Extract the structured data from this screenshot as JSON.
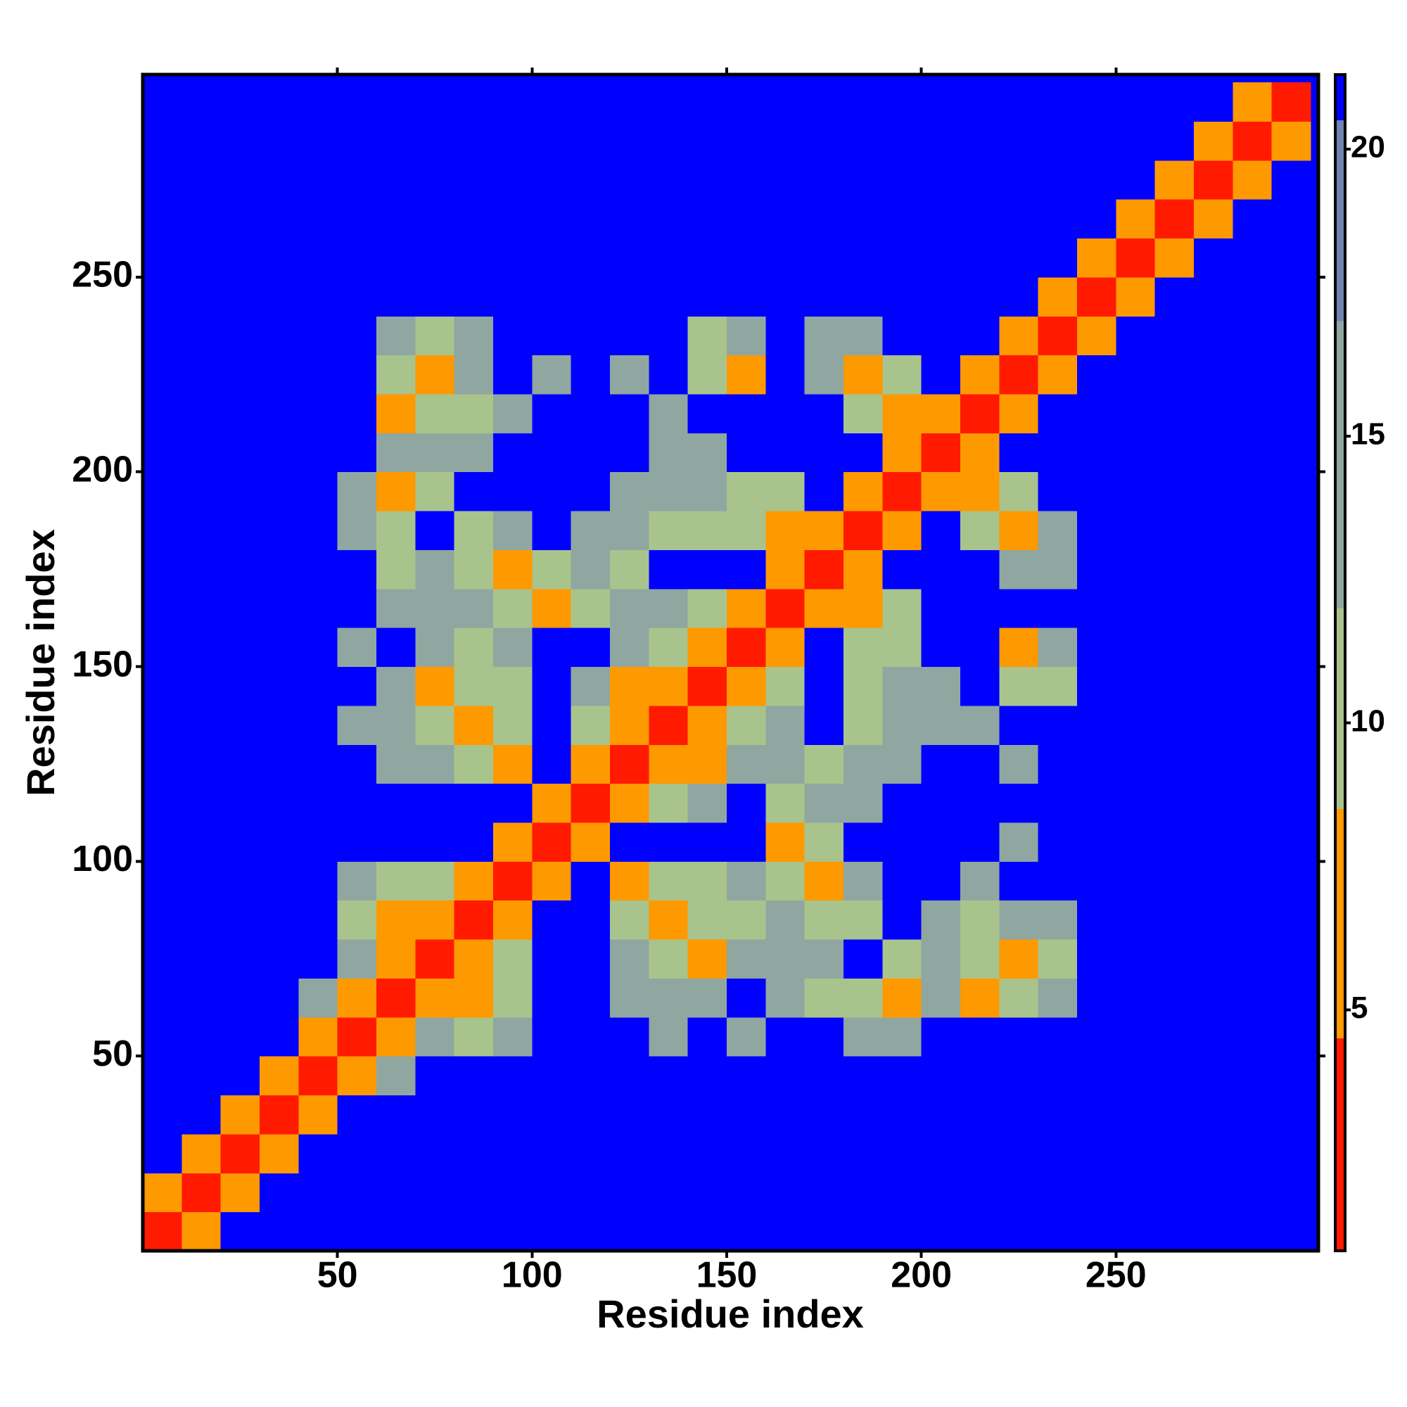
{
  "chart_data": {
    "type": "heatmap",
    "x_label": "Residue index",
    "y_label": "Residue index",
    "xlim": [
      0,
      302
    ],
    "ylim": [
      0,
      302
    ],
    "xticks": [
      50,
      100,
      150,
      200,
      250
    ],
    "yticks": [
      50,
      100,
      150,
      200,
      250
    ],
    "xbins": [
      0,
      10,
      20,
      30,
      40,
      50,
      60,
      70,
      80,
      90,
      100,
      110,
      120,
      130,
      140,
      150,
      160,
      170,
      180,
      190,
      200,
      210,
      220,
      230,
      240,
      250,
      260,
      270,
      280,
      290,
      300
    ],
    "ybins": [
      0,
      10,
      20,
      30,
      40,
      50,
      60,
      70,
      80,
      90,
      100,
      110,
      120,
      130,
      140,
      150,
      160,
      170,
      180,
      190,
      200,
      210,
      220,
      230,
      240,
      250,
      260,
      270,
      280,
      290,
      300
    ],
    "zlim": [
      0.8,
      21.3
    ],
    "zticks": [
      5,
      10,
      15,
      20
    ],
    "color_levels": [
      0.8,
      4.5,
      8.5,
      12,
      17,
      20.5,
      21.3
    ],
    "colors": [
      "#ff1a00",
      "#ff9900",
      "#a9c38c",
      "#8fa7a0",
      "#6f84b0",
      "#0000ff"
    ],
    "z": [
      [
        3,
        8,
        21,
        21,
        21,
        21,
        21,
        21,
        21,
        21,
        21,
        21,
        21,
        21,
        21,
        21,
        21,
        21,
        21,
        21,
        21,
        21,
        21,
        21,
        21,
        21,
        21,
        21,
        21,
        21
      ],
      [
        8,
        3,
        8,
        21,
        21,
        21,
        21,
        21,
        21,
        21,
        21,
        21,
        21,
        21,
        21,
        21,
        21,
        21,
        21,
        21,
        21,
        21,
        21,
        21,
        21,
        21,
        21,
        21,
        21,
        21
      ],
      [
        21,
        8,
        3,
        8,
        21,
        21,
        21,
        21,
        21,
        21,
        21,
        21,
        21,
        21,
        21,
        21,
        21,
        21,
        21,
        21,
        21,
        21,
        21,
        21,
        21,
        21,
        21,
        21,
        21,
        21
      ],
      [
        21,
        21,
        8,
        3,
        8,
        21,
        21,
        21,
        21,
        21,
        21,
        21,
        21,
        21,
        21,
        21,
        21,
        21,
        21,
        21,
        21,
        21,
        21,
        21,
        21,
        21,
        21,
        21,
        21,
        21
      ],
      [
        21,
        21,
        21,
        8,
        3,
        8,
        14,
        21,
        21,
        21,
        21,
        21,
        21,
        21,
        21,
        21,
        21,
        21,
        21,
        21,
        21,
        21,
        21,
        21,
        21,
        21,
        21,
        21,
        21,
        21
      ],
      [
        21,
        21,
        21,
        21,
        8,
        3,
        8,
        14,
        11,
        14,
        21,
        21,
        21,
        14,
        21,
        14,
        21,
        21,
        14,
        14,
        21,
        21,
        21,
        21,
        21,
        21,
        21,
        21,
        21,
        21
      ],
      [
        21,
        21,
        21,
        21,
        14,
        8,
        3,
        8,
        6,
        11,
        21,
        21,
        14,
        14,
        14,
        21,
        14,
        11,
        11,
        6,
        14,
        6,
        11,
        14,
        21,
        21,
        21,
        21,
        21,
        21
      ],
      [
        21,
        21,
        21,
        21,
        21,
        14,
        8,
        3,
        8,
        11,
        21,
        21,
        14,
        11,
        6,
        14,
        14,
        14,
        21,
        11,
        14,
        11,
        6,
        11,
        21,
        21,
        21,
        21,
        21,
        21
      ],
      [
        21,
        21,
        21,
        21,
        21,
        11,
        6,
        8,
        3,
        8,
        21,
        21,
        11,
        6,
        11,
        11,
        14,
        11,
        11,
        21,
        14,
        11,
        14,
        14,
        21,
        21,
        21,
        21,
        21,
        21
      ],
      [
        21,
        21,
        21,
        21,
        21,
        14,
        11,
        11,
        8,
        3,
        8,
        21,
        6,
        11,
        11,
        14,
        11,
        6,
        14,
        21,
        21,
        14,
        21,
        21,
        21,
        21,
        21,
        21,
        21,
        21
      ],
      [
        21,
        21,
        21,
        21,
        21,
        21,
        21,
        21,
        21,
        8,
        3,
        8,
        21,
        21,
        21,
        21,
        6,
        11,
        21,
        21,
        21,
        21,
        14,
        21,
        21,
        21,
        21,
        21,
        21,
        21
      ],
      [
        21,
        21,
        21,
        21,
        21,
        21,
        21,
        21,
        21,
        21,
        8,
        3,
        8,
        11,
        14,
        21,
        11,
        14,
        14,
        21,
        21,
        21,
        21,
        21,
        21,
        21,
        21,
        21,
        21,
        21
      ],
      [
        21,
        21,
        21,
        21,
        21,
        21,
        14,
        14,
        11,
        6,
        21,
        8,
        3,
        8,
        6,
        14,
        14,
        11,
        14,
        14,
        21,
        21,
        14,
        21,
        21,
        21,
        21,
        21,
        21,
        21
      ],
      [
        21,
        21,
        21,
        21,
        21,
        14,
        14,
        11,
        6,
        11,
        21,
        11,
        8,
        3,
        8,
        11,
        14,
        21,
        11,
        14,
        14,
        14,
        21,
        21,
        21,
        21,
        21,
        21,
        21,
        21
      ],
      [
        21,
        21,
        21,
        21,
        21,
        21,
        14,
        6,
        11,
        11,
        21,
        14,
        6,
        8,
        3,
        8,
        11,
        21,
        11,
        14,
        14,
        21,
        11,
        11,
        21,
        21,
        21,
        21,
        21,
        21
      ],
      [
        21,
        21,
        21,
        21,
        21,
        14,
        21,
        14,
        11,
        14,
        21,
        21,
        14,
        11,
        8,
        3,
        8,
        21,
        11,
        11,
        21,
        21,
        6,
        14,
        21,
        21,
        21,
        21,
        21,
        21
      ],
      [
        21,
        21,
        21,
        21,
        21,
        21,
        14,
        14,
        14,
        11,
        6,
        11,
        14,
        14,
        11,
        8,
        3,
        8,
        6,
        11,
        21,
        21,
        21,
        21,
        21,
        21,
        21,
        21,
        21,
        21
      ],
      [
        21,
        21,
        21,
        21,
        21,
        21,
        11,
        14,
        11,
        6,
        11,
        14,
        11,
        21,
        21,
        21,
        8,
        3,
        8,
        21,
        21,
        21,
        14,
        14,
        21,
        21,
        21,
        21,
        21,
        21
      ],
      [
        21,
        21,
        21,
        21,
        21,
        14,
        11,
        21,
        11,
        14,
        21,
        14,
        14,
        11,
        11,
        11,
        6,
        8,
        3,
        8,
        21,
        11,
        6,
        14,
        21,
        21,
        21,
        21,
        21,
        21
      ],
      [
        21,
        21,
        21,
        21,
        21,
        14,
        6,
        11,
        21,
        21,
        21,
        21,
        14,
        14,
        14,
        11,
        11,
        21,
        8,
        3,
        8,
        6,
        11,
        21,
        21,
        21,
        21,
        21,
        21,
        21
      ],
      [
        21,
        21,
        21,
        21,
        21,
        21,
        14,
        14,
        14,
        21,
        21,
        21,
        21,
        14,
        14,
        21,
        21,
        21,
        21,
        8,
        3,
        8,
        21,
        21,
        21,
        21,
        21,
        21,
        21,
        21
      ],
      [
        21,
        21,
        21,
        21,
        21,
        21,
        6,
        11,
        11,
        14,
        21,
        21,
        21,
        14,
        21,
        21,
        21,
        21,
        11,
        6,
        8,
        3,
        8,
        21,
        21,
        21,
        21,
        21,
        21,
        21
      ],
      [
        21,
        21,
        21,
        21,
        21,
        21,
        11,
        6,
        14,
        21,
        14,
        21,
        14,
        21,
        11,
        6,
        21,
        14,
        6,
        11,
        21,
        8,
        3,
        8,
        21,
        21,
        21,
        21,
        21,
        21
      ],
      [
        21,
        21,
        21,
        21,
        21,
        21,
        14,
        11,
        14,
        21,
        21,
        21,
        21,
        21,
        11,
        14,
        21,
        14,
        14,
        21,
        21,
        21,
        8,
        3,
        8,
        21,
        21,
        21,
        21,
        21
      ],
      [
        21,
        21,
        21,
        21,
        21,
        21,
        21,
        21,
        21,
        21,
        21,
        21,
        21,
        21,
        21,
        21,
        21,
        21,
        21,
        21,
        21,
        21,
        21,
        8,
        3,
        8,
        21,
        21,
        21,
        21
      ],
      [
        21,
        21,
        21,
        21,
        21,
        21,
        21,
        21,
        21,
        21,
        21,
        21,
        21,
        21,
        21,
        21,
        21,
        21,
        21,
        21,
        21,
        21,
        21,
        21,
        8,
        3,
        8,
        21,
        21,
        21
      ],
      [
        21,
        21,
        21,
        21,
        21,
        21,
        21,
        21,
        21,
        21,
        21,
        21,
        21,
        21,
        21,
        21,
        21,
        21,
        21,
        21,
        21,
        21,
        21,
        21,
        21,
        8,
        3,
        8,
        21,
        21
      ],
      [
        21,
        21,
        21,
        21,
        21,
        21,
        21,
        21,
        21,
        21,
        21,
        21,
        21,
        21,
        21,
        21,
        21,
        21,
        21,
        21,
        21,
        21,
        21,
        21,
        21,
        21,
        8,
        3,
        8,
        21
      ],
      [
        21,
        21,
        21,
        21,
        21,
        21,
        21,
        21,
        21,
        21,
        21,
        21,
        21,
        21,
        21,
        21,
        21,
        21,
        21,
        21,
        21,
        21,
        21,
        21,
        21,
        21,
        21,
        8,
        3,
        8
      ],
      [
        21,
        21,
        21,
        21,
        21,
        21,
        21,
        21,
        21,
        21,
        21,
        21,
        21,
        21,
        21,
        21,
        21,
        21,
        21,
        21,
        21,
        21,
        21,
        21,
        21,
        21,
        21,
        21,
        8,
        3
      ]
    ]
  }
}
